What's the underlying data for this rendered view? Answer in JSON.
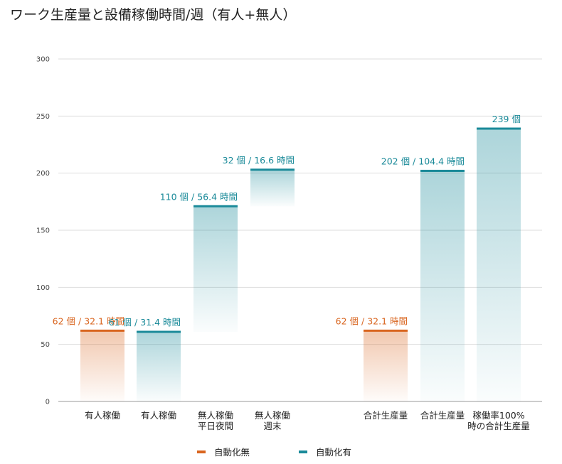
{
  "chart_data": {
    "type": "bar",
    "title": "ワーク生産量と設備稼働時間/週（有人+無人）",
    "xlabel": "",
    "ylabel": "",
    "ylim": [
      0,
      300
    ],
    "yticks": [
      0,
      50,
      100,
      150,
      200,
      250,
      300
    ],
    "grid": true,
    "legend_position": "bottom",
    "colors": {
      "自動化無": "#d9651f",
      "自動化有": "#1a8a99"
    },
    "legend": [
      {
        "name": "自動化無",
        "color": "#d9651f"
      },
      {
        "name": "自動化有",
        "color": "#1a8a99"
      }
    ],
    "bars": [
      {
        "label": [
          "有人稼働"
        ],
        "series": "自動化無",
        "base": 0,
        "top": 62,
        "data_label": "62 個 / 32.1 時間"
      },
      {
        "label": [
          "有人稼働"
        ],
        "series": "自動化有",
        "base": 0,
        "top": 61,
        "data_label": "61 個 / 31.4 時間"
      },
      {
        "label": [
          "無人稼働",
          "平日夜間"
        ],
        "series": "自動化有",
        "base": 61,
        "top": 171,
        "data_label": "110 個 / 56.4 時間"
      },
      {
        "label": [
          "無人稼働",
          "週末"
        ],
        "series": "自動化有",
        "base": 171,
        "top": 203,
        "data_label": "32 個 / 16.6 時間"
      },
      {
        "label": [
          "合計生産量"
        ],
        "series": "自動化無",
        "base": 0,
        "top": 62,
        "data_label": "62 個 / 32.1 時間"
      },
      {
        "label": [
          "合計生産量"
        ],
        "series": "自動化有",
        "base": 0,
        "top": 202,
        "data_label": "202 個 / 104.4 時間"
      },
      {
        "label": [
          "稼働率100%",
          "時の合計生産量"
        ],
        "series": "自動化有",
        "base": 0,
        "top": 239,
        "data_label": "239 個"
      }
    ]
  }
}
